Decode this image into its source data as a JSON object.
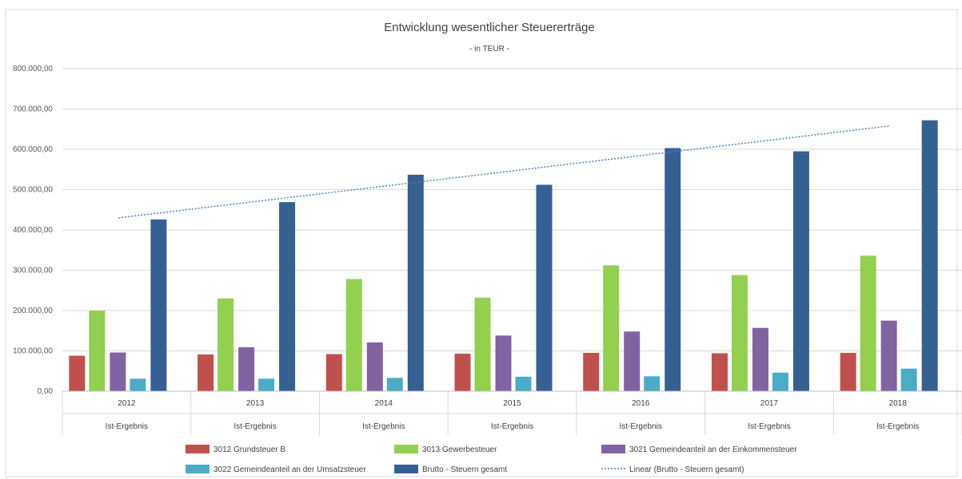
{
  "chart_data": {
    "type": "bar",
    "title": "Entwicklung wesentlicher Steuererträge",
    "subtitle": "- in TEUR -",
    "categories": [
      "2012",
      "2013",
      "2014",
      "2015",
      "2016",
      "2017",
      "2018"
    ],
    "category_sublabels": [
      "Ist-Ergebnis",
      "Ist-Ergebnis",
      "Ist-Ergebnis",
      "Ist-Ergebnis",
      "Ist-Ergebnis",
      "Ist-Ergebnis",
      "Ist-Ergebnis"
    ],
    "ylim": [
      0,
      800000
    ],
    "yticks": [
      0,
      100000,
      200000,
      300000,
      400000,
      500000,
      600000,
      700000,
      800000
    ],
    "ytick_labels": [
      "0,00",
      "100.000,00",
      "200.000,00",
      "300.000,00",
      "400.000,00",
      "500.000,00",
      "600.000,00",
      "700.000,00",
      "800.000,00"
    ],
    "grid": true,
    "legend_position": "bottom",
    "series": [
      {
        "name": "3012 Grundsteuer B",
        "color": "#C0504D",
        "values": [
          88000,
          91000,
          92000,
          93000,
          95000,
          94000,
          95000
        ]
      },
      {
        "name": "3013 Gewerbesteuer",
        "color": "#92D050",
        "values": [
          200000,
          230000,
          278000,
          232000,
          312000,
          288000,
          336000
        ]
      },
      {
        "name": "3021 Gemeindeanteil an der Einkommensteuer",
        "color": "#8064A2",
        "values": [
          96000,
          109000,
          121000,
          138000,
          148000,
          157000,
          175000
        ]
      },
      {
        "name": "3022 Gemeindeanteil an der Umsatzsteuer",
        "color": "#4BACC6",
        "values": [
          31000,
          31000,
          33000,
          36000,
          37000,
          46000,
          56000
        ]
      },
      {
        "name": "Brutto - Steuern gesamt",
        "color": "#366092",
        "values": [
          426000,
          469000,
          537000,
          512000,
          603000,
          595000,
          672000
        ]
      }
    ],
    "trendline": {
      "name": "Linear (Brutto - Steuern gesamt)",
      "color": "#4F81BD",
      "start": 430000,
      "end": 658000
    }
  }
}
